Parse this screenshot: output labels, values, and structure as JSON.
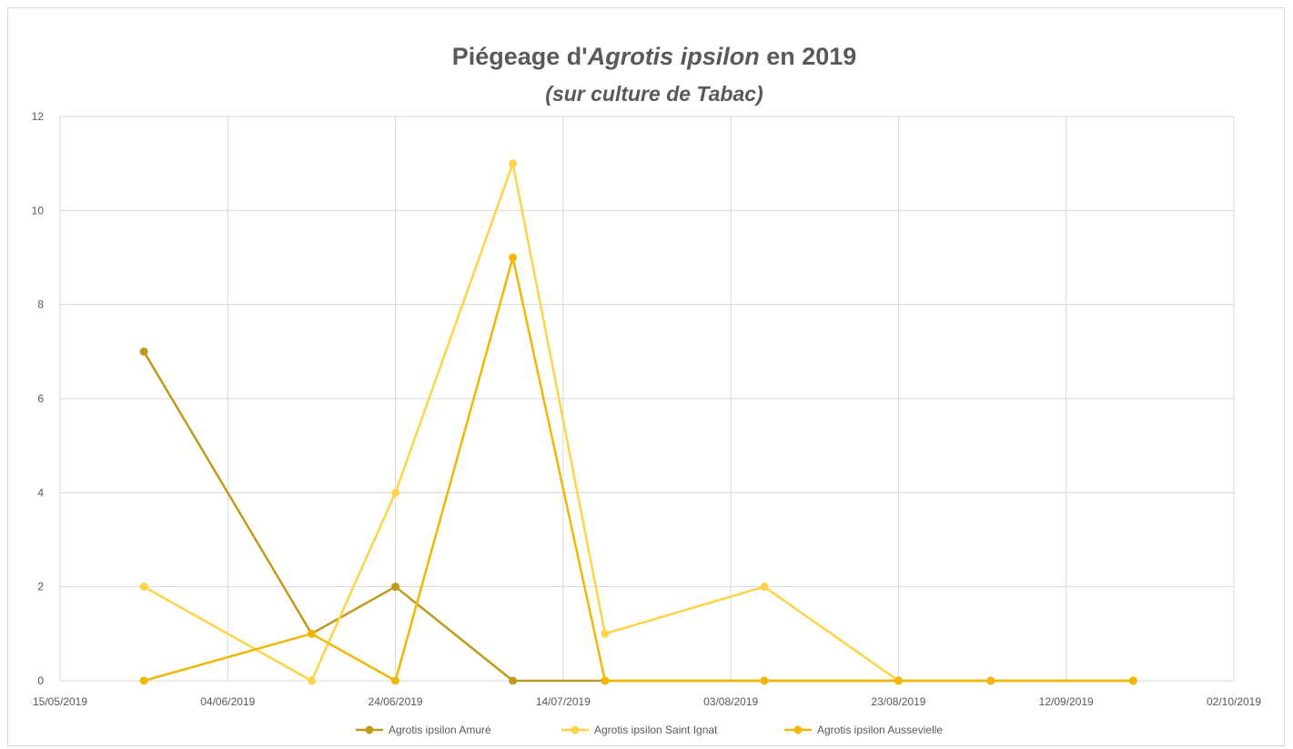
{
  "chart_data": {
    "type": "line",
    "title": {
      "part1": "Piégeage d'",
      "part2_italic": "Agrotis ipsilon",
      "part3": " en 2019"
    },
    "subtitle": "(sur culture de Tabac)",
    "xlabel": "",
    "ylabel": "",
    "x_axis_type": "date",
    "xlim": [
      "2019-05-15",
      "2019-10-02"
    ],
    "x_ticks": [
      "15/05/2019",
      "04/06/2019",
      "24/06/2019",
      "14/07/2019",
      "03/08/2019",
      "23/08/2019",
      "12/09/2019",
      "02/10/2019"
    ],
    "ylim": [
      0,
      12
    ],
    "y_ticks": [
      0,
      2,
      4,
      6,
      8,
      10,
      12
    ],
    "grid": true,
    "legend_position": "bottom",
    "series": [
      {
        "name": "Agrotis ipsilon Amuré",
        "color": "#c09a1c",
        "points": [
          {
            "x": "2019-05-25",
            "y": 7
          },
          {
            "x": "2019-06-14",
            "y": 1
          },
          {
            "x": "2019-06-24",
            "y": 2
          },
          {
            "x": "2019-07-08",
            "y": 0
          },
          {
            "x": "2019-07-19",
            "y": 0
          },
          {
            "x": "2019-08-07",
            "y": 0
          },
          {
            "x": "2019-08-23",
            "y": 0
          },
          {
            "x": "2019-09-03",
            "y": 0
          },
          {
            "x": "2019-09-20",
            "y": 0
          }
        ]
      },
      {
        "name": "Agrotis ipsilon Saint Ignat",
        "color": "#ffd347",
        "points": [
          {
            "x": "2019-05-25",
            "y": 2
          },
          {
            "x": "2019-06-14",
            "y": 0
          },
          {
            "x": "2019-06-24",
            "y": 4
          },
          {
            "x": "2019-07-08",
            "y": 11
          },
          {
            "x": "2019-07-19",
            "y": 1
          },
          {
            "x": "2019-08-07",
            "y": 2
          },
          {
            "x": "2019-08-23",
            "y": 0
          },
          {
            "x": "2019-09-03",
            "y": 0
          },
          {
            "x": "2019-09-20",
            "y": 0
          }
        ]
      },
      {
        "name": "Agrotis ipsilon Aussevielle",
        "color": "#f2b705",
        "points": [
          {
            "x": "2019-05-25",
            "y": 0
          },
          {
            "x": "2019-06-14",
            "y": 1
          },
          {
            "x": "2019-06-24",
            "y": 0
          },
          {
            "x": "2019-07-08",
            "y": 9
          },
          {
            "x": "2019-07-19",
            "y": 0
          },
          {
            "x": "2019-08-07",
            "y": 0
          },
          {
            "x": "2019-08-23",
            "y": 0
          },
          {
            "x": "2019-09-03",
            "y": 0
          },
          {
            "x": "2019-09-20",
            "y": 0
          }
        ]
      }
    ]
  }
}
